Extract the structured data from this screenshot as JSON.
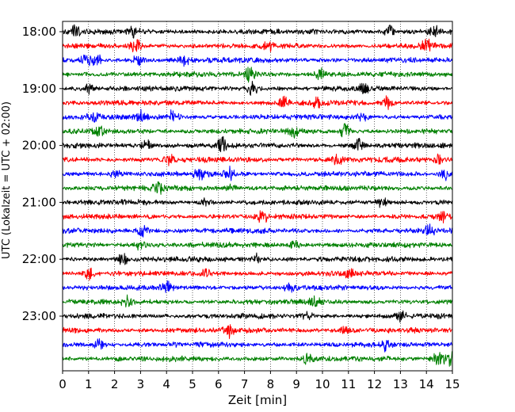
{
  "chart_data": {
    "type": "line",
    "title": "",
    "xlabel": "Zeit  [min]",
    "ylabel": "UTC (Lokalzeit = UTC + 02:00)",
    "xlim": [
      0,
      15
    ],
    "x_ticks": [
      "0",
      "1",
      "2",
      "3",
      "4",
      "5",
      "6",
      "7",
      "8",
      "9",
      "10",
      "11",
      "12",
      "13",
      "14",
      "15"
    ],
    "y_tick_labels": [
      "18:00",
      "19:00",
      "20:00",
      "21:00",
      "22:00",
      "23:00"
    ],
    "grid": "vertical dotted at each minute",
    "trace_interval_min": 15,
    "colors": [
      "#000000",
      "#ff0000",
      "#0000ff",
      "#008000"
    ],
    "traces": [
      {
        "start": "18:00",
        "color": "#000000",
        "events": [
          [
            0.5,
            1.3
          ],
          [
            2.7,
            1.2
          ],
          [
            12.6,
            1.4
          ],
          [
            14.3,
            1.2
          ]
        ]
      },
      {
        "start": "18:15",
        "color": "#ff0000",
        "events": [
          [
            2.8,
            1.8
          ],
          [
            8.0,
            1.3
          ],
          [
            14.0,
            1.1
          ]
        ]
      },
      {
        "start": "18:30",
        "color": "#0000ff",
        "events": [
          [
            0.9,
            1.6
          ],
          [
            1.3,
            1.3
          ],
          [
            2.9,
            1.2
          ],
          [
            4.7,
            1.1
          ]
        ]
      },
      {
        "start": "18:45",
        "color": "#008000",
        "events": [
          [
            7.2,
            2.6
          ],
          [
            9.9,
            1.2
          ]
        ]
      },
      {
        "start": "19:00",
        "color": "#000000",
        "events": [
          [
            1.0,
            1.1
          ],
          [
            7.3,
            1.3
          ],
          [
            11.6,
            1.1
          ]
        ]
      },
      {
        "start": "19:15",
        "color": "#ff0000",
        "events": [
          [
            8.5,
            1.1
          ],
          [
            9.8,
            1.3
          ],
          [
            12.5,
            1.2
          ]
        ]
      },
      {
        "start": "19:30",
        "color": "#0000ff",
        "events": [
          [
            4.3,
            2.0
          ],
          [
            1.2,
            1.1
          ],
          [
            3.0,
            1.2
          ],
          [
            11.5,
            1.0
          ]
        ]
      },
      {
        "start": "19:45",
        "color": "#008000",
        "events": [
          [
            1.4,
            1.1
          ],
          [
            8.9,
            1.1
          ],
          [
            10.9,
            2.0
          ]
        ]
      },
      {
        "start": "20:00",
        "color": "#000000",
        "events": [
          [
            3.2,
            1.3
          ],
          [
            6.1,
            1.8
          ],
          [
            11.4,
            2.0
          ]
        ]
      },
      {
        "start": "20:15",
        "color": "#ff0000",
        "events": [
          [
            4.1,
            1.1
          ],
          [
            10.6,
            1.1
          ],
          [
            14.5,
            1.0
          ]
        ]
      },
      {
        "start": "20:30",
        "color": "#0000ff",
        "events": [
          [
            2.0,
            1.0
          ],
          [
            5.3,
            1.2
          ],
          [
            6.4,
            1.3
          ],
          [
            14.7,
            1.2
          ]
        ]
      },
      {
        "start": "20:45",
        "color": "#008000",
        "events": [
          [
            3.7,
            1.0
          ],
          [
            6.5,
            1.1
          ]
        ]
      },
      {
        "start": "21:00",
        "color": "#000000",
        "events": [
          [
            5.5,
            1.1
          ],
          [
            12.3,
            1.2
          ]
        ]
      },
      {
        "start": "21:15",
        "color": "#ff0000",
        "events": [
          [
            7.7,
            1.2
          ],
          [
            14.6,
            1.0
          ]
        ]
      },
      {
        "start": "21:30",
        "color": "#0000ff",
        "events": [
          [
            3.1,
            1.3
          ],
          [
            14.1,
            1.2
          ]
        ]
      },
      {
        "start": "21:45",
        "color": "#008000",
        "events": [
          [
            3.0,
            1.0
          ],
          [
            8.9,
            1.0
          ]
        ]
      },
      {
        "start": "22:00",
        "color": "#000000",
        "events": [
          [
            2.3,
            1.2
          ],
          [
            7.5,
            1.0
          ]
        ]
      },
      {
        "start": "22:15",
        "color": "#ff0000",
        "events": [
          [
            1.0,
            1.4
          ],
          [
            5.5,
            1.1
          ],
          [
            11.0,
            1.0
          ]
        ]
      },
      {
        "start": "22:30",
        "color": "#0000ff",
        "events": [
          [
            4.0,
            1.1
          ],
          [
            8.8,
            1.0
          ]
        ]
      },
      {
        "start": "22:45",
        "color": "#008000",
        "events": [
          [
            2.5,
            1.0
          ],
          [
            9.7,
            1.0
          ]
        ]
      },
      {
        "start": "23:00",
        "color": "#000000",
        "events": [
          [
            9.4,
            1.0
          ],
          [
            13.0,
            1.0
          ]
        ]
      },
      {
        "start": "23:15",
        "color": "#ff0000",
        "events": [
          [
            6.4,
            1.3
          ],
          [
            10.9,
            1.0
          ]
        ]
      },
      {
        "start": "23:30",
        "color": "#0000ff",
        "events": [
          [
            1.4,
            1.2
          ],
          [
            12.4,
            1.0
          ]
        ]
      },
      {
        "start": "23:45",
        "color": "#008000",
        "events": [
          [
            9.4,
            1.0
          ],
          [
            14.4,
            1.6
          ],
          [
            14.9,
            2.4
          ]
        ]
      }
    ]
  }
}
